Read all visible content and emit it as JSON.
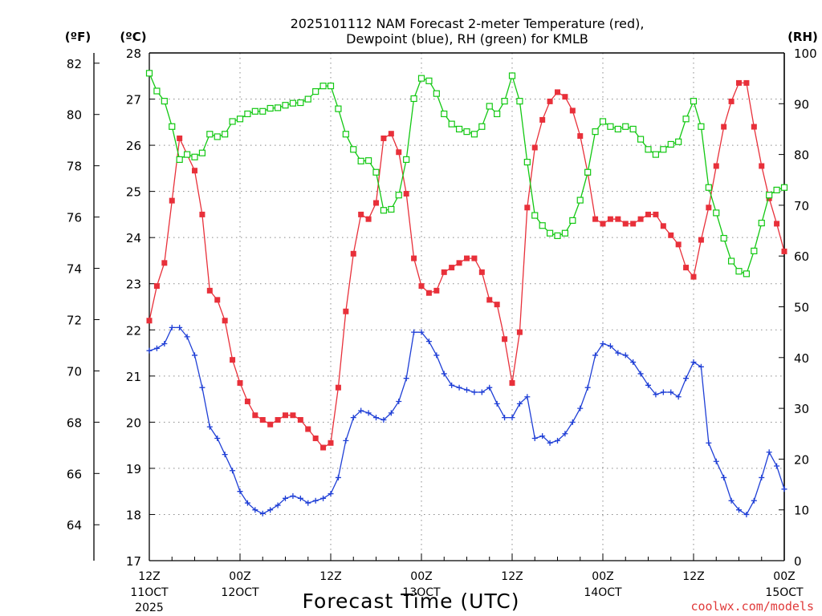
{
  "chart_data": {
    "type": "line",
    "title_lines": [
      "2025101112 NAM Forecast 2-meter Temperature (red),",
      "Dewpoint (blue), RH (green) for KMLB"
    ],
    "units": {
      "left_f": "(ºF)",
      "left_c": "(ºC)",
      "right": "(RH)"
    },
    "xlabel": "Forecast Time (UTC)",
    "credit": "coolwx.com/models",
    "x_range_hours": [
      0,
      84
    ],
    "x_ticks": [
      {
        "hour": 0,
        "label": "12Z",
        "sub": "11OCT",
        "sub2": "2025"
      },
      {
        "hour": 12,
        "label": "00Z",
        "sub": "12OCT",
        "sub2": ""
      },
      {
        "hour": 24,
        "label": "12Z",
        "sub": "",
        "sub2": ""
      },
      {
        "hour": 36,
        "label": "00Z",
        "sub": "13OCT",
        "sub2": ""
      },
      {
        "hour": 48,
        "label": "12Z",
        "sub": "",
        "sub2": ""
      },
      {
        "hour": 60,
        "label": "00Z",
        "sub": "14OCT",
        "sub2": ""
      },
      {
        "hour": 72,
        "label": "12Z",
        "sub": "",
        "sub2": ""
      },
      {
        "hour": 84,
        "label": "00Z",
        "sub": "15OCT",
        "sub2": ""
      }
    ],
    "ylim_c": [
      17,
      28
    ],
    "yticks_c": [
      "17",
      "18",
      "19",
      "20",
      "21",
      "22",
      "23",
      "24",
      "25",
      "26",
      "27",
      "28"
    ],
    "yticks_f": [
      "64",
      "66",
      "68",
      "70",
      "72",
      "74",
      "76",
      "78",
      "80",
      "82"
    ],
    "ylim_rh": [
      0,
      100
    ],
    "yticks_rh": [
      "0",
      "10",
      "20",
      "30",
      "40",
      "50",
      "60",
      "70",
      "80",
      "90",
      "100"
    ],
    "grid": true,
    "colors": {
      "temperature": "#e8303a",
      "dewpoint": "#1f3fd6",
      "rh": "#12c812",
      "grid": "#8a8a8a"
    },
    "series": [
      {
        "name": "Temperature",
        "unit": "C",
        "values": [
          22.2,
          22.95,
          23.45,
          24.8,
          26.15,
          25.8,
          25.45,
          24.5,
          22.85,
          22.65,
          22.2,
          21.35,
          20.85,
          20.45,
          20.15,
          20.05,
          19.95,
          20.05,
          20.15,
          20.15,
          20.05,
          19.85,
          19.65,
          19.45,
          19.55,
          20.75,
          22.4,
          23.65,
          24.5,
          24.4,
          24.75,
          26.15,
          26.25,
          25.85,
          24.95,
          23.55,
          22.95,
          22.8,
          22.85,
          23.25,
          23.35,
          23.45,
          23.55,
          23.55,
          23.25,
          22.65,
          22.55,
          21.8,
          20.85,
          21.95,
          24.65,
          25.95,
          26.55,
          26.95,
          27.15,
          27.05,
          26.75,
          26.2,
          25.4,
          24.4,
          24.3,
          24.4,
          24.4,
          24.3,
          24.3,
          24.4,
          24.5,
          24.5,
          24.25,
          24.05,
          23.85,
          23.35,
          23.15,
          23.95,
          24.65,
          25.55,
          26.4,
          26.95,
          27.35,
          27.35,
          26.4,
          25.55,
          24.85,
          24.3,
          23.7
        ]
      },
      {
        "name": "Dewpoint",
        "unit": "C",
        "values": [
          21.55,
          21.6,
          21.7,
          22.05,
          22.05,
          21.85,
          21.45,
          20.75,
          19.9,
          19.65,
          19.3,
          18.95,
          18.5,
          18.25,
          18.1,
          18.02,
          18.1,
          18.2,
          18.35,
          18.4,
          18.35,
          18.25,
          18.3,
          18.35,
          18.45,
          18.8,
          19.6,
          20.1,
          20.25,
          20.2,
          20.1,
          20.05,
          20.2,
          20.45,
          20.95,
          21.95,
          21.95,
          21.75,
          21.45,
          21.05,
          20.8,
          20.75,
          20.7,
          20.65,
          20.65,
          20.75,
          20.4,
          20.1,
          20.1,
          20.4,
          20.55,
          19.65,
          19.7,
          19.55,
          19.6,
          19.75,
          20,
          20.3,
          20.75,
          21.45,
          21.7,
          21.65,
          21.5,
          21.45,
          21.3,
          21.05,
          20.8,
          20.6,
          20.65,
          20.65,
          20.55,
          20.95,
          21.3,
          21.2,
          19.55,
          19.15,
          18.8,
          18.3,
          18.1,
          18,
          18.3,
          18.8,
          19.35,
          19.05,
          18.55
        ]
      },
      {
        "name": "RH",
        "unit": "%",
        "values": [
          96,
          92.5,
          90.5,
          85.5,
          79,
          80,
          79.5,
          80.3,
          84,
          83.5,
          84,
          86.5,
          87,
          88,
          88.5,
          88.5,
          89.1,
          89.2,
          89.7,
          90.1,
          90.2,
          90.9,
          92.4,
          93.5,
          93.5,
          89,
          84,
          81,
          78.7,
          78.8,
          76.5,
          69,
          69.2,
          72,
          79,
          91,
          95,
          94.5,
          92,
          88,
          86,
          85,
          84.5,
          84,
          85.5,
          89.5,
          88,
          90.5,
          95.5,
          90.5,
          78.5,
          68,
          66,
          64.5,
          64,
          64.5,
          67,
          71,
          76.5,
          84.5,
          86.5,
          85.5,
          85,
          85.5,
          85,
          83,
          81,
          80,
          81,
          82,
          82.5,
          87,
          90.5,
          85.5,
          73.5,
          68.5,
          63.5,
          59,
          57,
          56.5,
          61,
          66.5,
          72,
          73,
          73.5
        ]
      }
    ]
  }
}
